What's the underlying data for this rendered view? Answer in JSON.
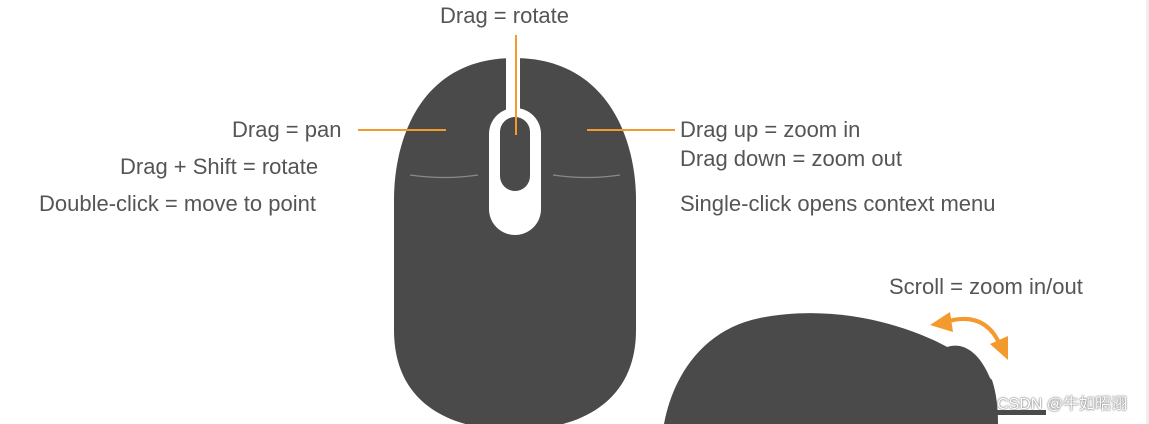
{
  "labels": {
    "top_drag": "Drag = rotate",
    "left_drag": "Drag = pan",
    "left_shift": "Drag + Shift = rotate",
    "left_double": "Double-click = move to point",
    "right_drag_up": "Drag up = zoom in",
    "right_drag_down": "Drag down = zoom out",
    "right_single": "Single-click opens context menu",
    "scroll": "Scroll = zoom in/out"
  },
  "watermark": "CSDN @牛如昭诩",
  "colors": {
    "mouse_body": "#4a4a4a",
    "leader_line": "#f29a2e",
    "label_text": "#555555",
    "button_seam": "#8a8a8a",
    "wheel_slot": "#ffffff"
  }
}
